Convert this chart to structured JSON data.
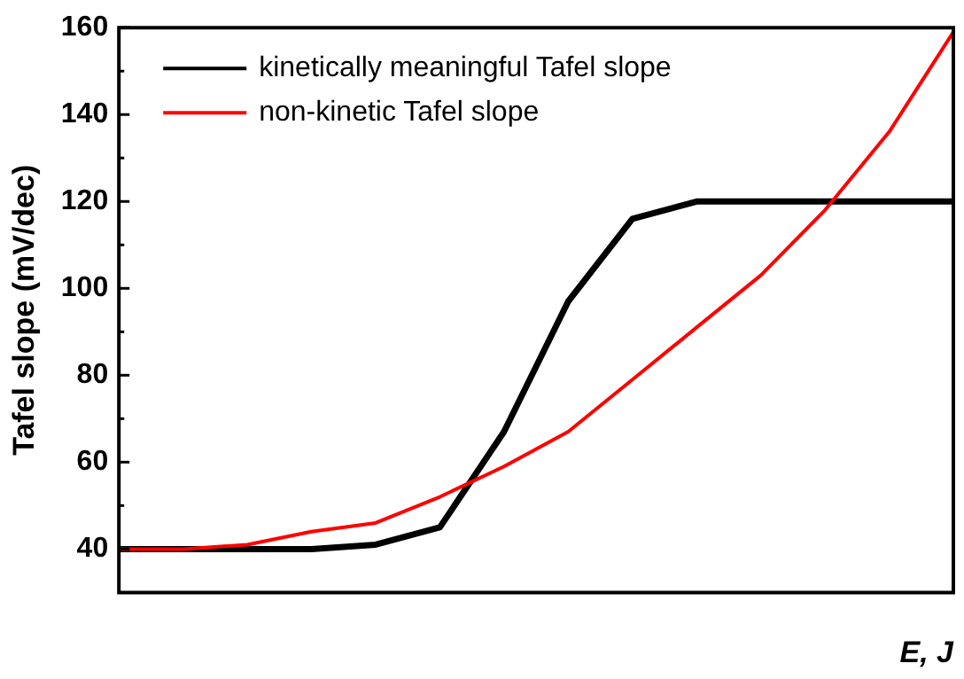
{
  "chart_data": {
    "type": "line",
    "xlabel": "E, J",
    "ylabel": "Tafel slope (mV/dec)",
    "categories": [
      null,
      null,
      null,
      null,
      null,
      null,
      null,
      null,
      null,
      null,
      null,
      null,
      null,
      null
    ],
    "series": [
      {
        "name": "kinetically meaningful Tafel slope",
        "color": "#000000",
        "values": [
          40,
          40,
          40,
          40,
          41,
          45,
          67,
          97,
          116,
          120,
          120,
          120,
          120,
          120
        ]
      },
      {
        "name": "non-kinetic Tafel slope",
        "color": "#ff0000",
        "values": [
          40,
          40,
          41,
          44,
          46,
          52,
          59,
          67,
          79,
          91,
          103,
          118,
          136,
          159
        ]
      }
    ],
    "ylim": [
      30,
      160
    ],
    "yticks": [
      40,
      60,
      80,
      100,
      120,
      140,
      160
    ],
    "grid": false,
    "legend": "top left",
    "marker": "none",
    "line_style": "solid"
  }
}
